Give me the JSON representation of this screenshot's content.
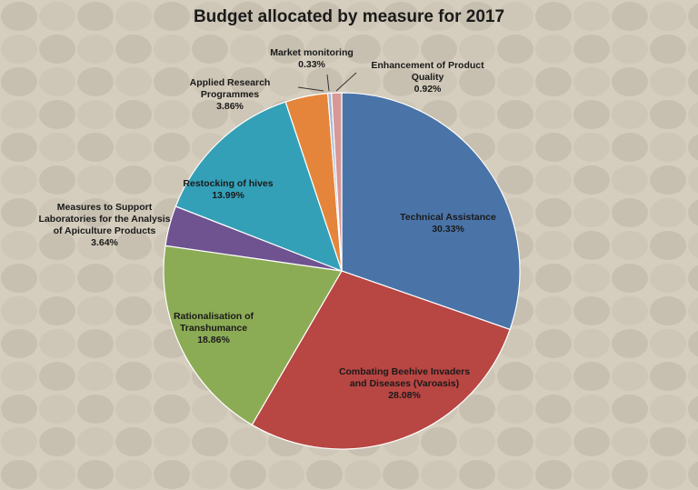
{
  "chart_data": {
    "type": "pie",
    "title": "Budget allocated by measure for 2017",
    "start_angle_deg": 0,
    "direction": "clockwise",
    "slices": [
      {
        "label": "Technical Assistance",
        "pct_text": "30.33%",
        "value": 30.33,
        "color": "#4a74a8"
      },
      {
        "label": "Combating Beehive Invaders and Diseases (Varoasis)",
        "pct_text": "28.08%",
        "value": 28.08,
        "color": "#b84642"
      },
      {
        "label": "Rationalisation of Transhumance",
        "pct_text": "18.86%",
        "value": 18.86,
        "color": "#8cab55"
      },
      {
        "label": "Measures to Support Laboratories for the Analysis of Apiculture Products",
        "pct_text": "3.64%",
        "value": 3.64,
        "color": "#6e5390"
      },
      {
        "label": "Restocking of hives",
        "pct_text": "13.99%",
        "value": 13.99,
        "color": "#34a0b7"
      },
      {
        "label": "Applied Research Programmes",
        "pct_text": "3.86%",
        "value": 3.86,
        "color": "#e5853b"
      },
      {
        "label": "Market monitoring",
        "pct_text": "0.33%",
        "value": 0.33,
        "color": "#a5b8d6"
      },
      {
        "label": "Enhancement of Product Quality",
        "pct_text": "0.92%",
        "value": 0.92,
        "color": "#d79898"
      }
    ]
  }
}
